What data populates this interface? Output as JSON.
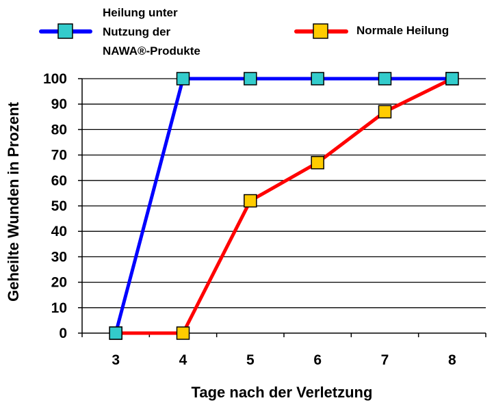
{
  "chart_data": {
    "type": "line",
    "title": "",
    "xlabel": "Tage nach der Verletzung",
    "ylabel": "Geheilte Wunden in Prozent",
    "x": [
      3,
      4,
      5,
      6,
      7,
      8
    ],
    "xlim": [
      2.5,
      8.5
    ],
    "ylim": [
      0,
      100
    ],
    "yticks": [
      0,
      10,
      20,
      30,
      40,
      50,
      60,
      70,
      80,
      90,
      100
    ],
    "grid": "horizontal",
    "legend_position": "top",
    "series": [
      {
        "legend_lines": [
          "Heilung unter",
          "Nutzung der",
          "NAWA®-Produkte"
        ],
        "values": [
          0,
          100,
          100,
          100,
          100,
          100
        ],
        "line_color": "#0000ff",
        "marker_color": "#33cccc"
      },
      {
        "name": "Normale Heilung",
        "values": [
          0,
          0,
          52,
          67,
          87,
          100
        ],
        "line_color": "#ff0000",
        "marker_color": "#ffcc00"
      }
    ]
  }
}
